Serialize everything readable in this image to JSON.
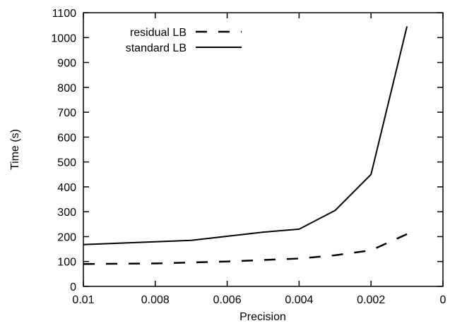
{
  "chart_data": {
    "type": "line",
    "title": "",
    "xlabel": "Precision",
    "ylabel": "Time (s)",
    "xlim": [
      0.01,
      0
    ],
    "ylim": [
      0,
      1100
    ],
    "x_reversed": true,
    "grid": false,
    "legend_position": "top-left",
    "x_ticks": [
      0.01,
      0.008,
      0.006,
      0.004,
      0.002,
      0
    ],
    "x_tick_labels": [
      "0.01",
      "0.008",
      "0.006",
      "0.004",
      "0.002",
      "0"
    ],
    "y_ticks": [
      0,
      100,
      200,
      300,
      400,
      500,
      600,
      700,
      800,
      900,
      1000,
      1100
    ],
    "y_tick_labels": [
      "0",
      "100",
      "200",
      "300",
      "400",
      "500",
      "600",
      "700",
      "800",
      "900",
      "1000",
      "1100"
    ],
    "series": [
      {
        "name": "residual LB",
        "style": "dashed",
        "color": "#000000",
        "x": [
          0.01,
          0.008,
          0.006,
          0.004,
          0.003,
          0.002,
          0.001
        ],
        "y": [
          90,
          92,
          100,
          112,
          125,
          145,
          210
        ]
      },
      {
        "name": "standard LB",
        "style": "solid",
        "color": "#000000",
        "x": [
          0.01,
          0.007,
          0.005,
          0.004,
          0.003,
          0.002,
          0.001
        ],
        "y": [
          168,
          185,
          218,
          230,
          305,
          450,
          1045
        ]
      }
    ]
  }
}
